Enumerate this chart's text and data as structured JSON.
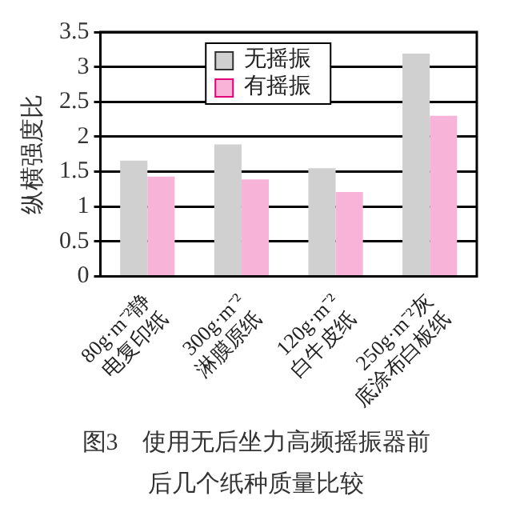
{
  "chart_data": {
    "type": "bar",
    "title": "图3　使用无后坐力高频摇振器前后几个纸种质量比较",
    "ylabel": "纵横强度比",
    "categories": [
      "80g·m⁻²静\n电复印纸",
      "300g·m⁻²\n淋膜原纸",
      "120g·m⁻²\n白牛皮纸",
      "250g·m⁻²灰\n底涂布白板纸"
    ],
    "series": [
      {
        "name": "无摇振",
        "color": "#d0d0d0",
        "values": [
          1.66,
          1.89,
          1.55,
          3.19
        ]
      },
      {
        "name": "有摇振",
        "color": "#f8b4d8",
        "values": [
          1.43,
          1.39,
          1.21,
          2.3
        ]
      }
    ],
    "ylim": [
      0,
      3.5
    ],
    "yticks": [
      0,
      0.5,
      1,
      1.5,
      2,
      2.5,
      3,
      3.5
    ],
    "grid": "y",
    "legend": "top"
  }
}
